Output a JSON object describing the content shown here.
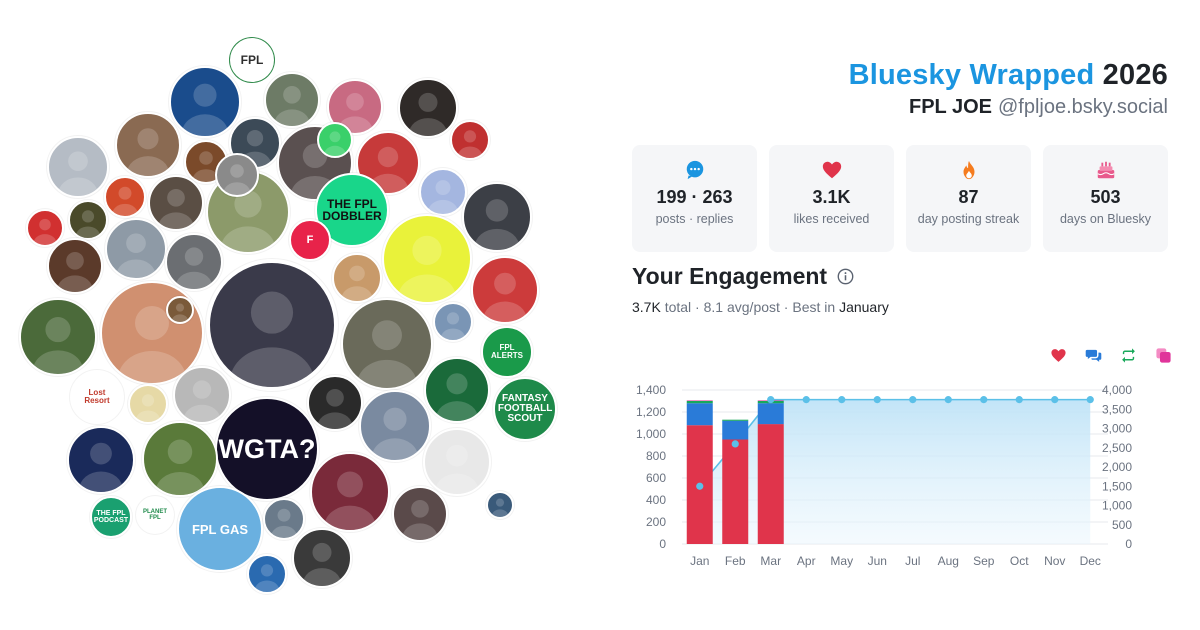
{
  "header": {
    "brand": "Bluesky Wrapped",
    "year": "2026",
    "name": "FPL JOE",
    "handle": "@fpljoe.bsky.social"
  },
  "stats": [
    {
      "value": "199 · 263",
      "label": "posts · replies",
      "icon": "chat-bubble-icon",
      "color": "#1b95e0"
    },
    {
      "value": "3.1K",
      "label": "likes received",
      "icon": "heart-icon",
      "color": "#e0344b"
    },
    {
      "value": "87",
      "label": "day posting streak",
      "icon": "flame-icon",
      "color": "#f57c1f"
    },
    {
      "value": "503",
      "label": "days on Bluesky",
      "icon": "cake-icon",
      "color": "#e85a8c"
    }
  ],
  "engagement": {
    "title": "Your Engagement",
    "total": "3.7K",
    "total_label": "total",
    "avg": "8.1 avg/post",
    "best_prefix": "Best in",
    "best_month": "January",
    "legend": [
      {
        "icon": "heart-icon",
        "color": "#e0344b"
      },
      {
        "icon": "replies-icon",
        "color": "#2a7bd8"
      },
      {
        "icon": "repost-icon",
        "color": "#18a85a"
      },
      {
        "icon": "quote-icon",
        "color": "#e0349a"
      }
    ]
  },
  "chart_data": {
    "type": "bar",
    "categories": [
      "Jan",
      "Feb",
      "Mar",
      "Apr",
      "May",
      "Jun",
      "Jul",
      "Aug",
      "Sep",
      "Oct",
      "Nov",
      "Dec"
    ],
    "ylim": [
      0,
      1400
    ],
    "y2lim": [
      0,
      4000
    ],
    "yticks": [
      "0",
      "200",
      "400",
      "600",
      "800",
      "1,000",
      "1,200",
      "1,400"
    ],
    "y2ticks": [
      "0",
      "500",
      "1,000",
      "1,500",
      "2,000",
      "2,500",
      "3,000",
      "3,500",
      "4,000"
    ],
    "series": [
      {
        "values": [
          1080,
          950,
          1090,
          0,
          0,
          0,
          0,
          0,
          0,
          0,
          0,
          0
        ],
        "color": "#e0344b"
      },
      {
        "values": [
          200,
          170,
          190,
          0,
          0,
          0,
          0,
          0,
          0,
          0,
          0,
          0
        ],
        "color": "#2a7bd8"
      },
      {
        "values": [
          20,
          10,
          20,
          0,
          0,
          0,
          0,
          0,
          0,
          0,
          0,
          0
        ],
        "color": "#18a85a"
      },
      {
        "values": [
          5,
          0,
          5,
          0,
          0,
          0,
          0,
          0,
          0,
          0,
          0,
          0
        ],
        "color": "#e0349a"
      }
    ],
    "cumulative": {
      "values": [
        1500,
        2600,
        3750,
        3750,
        3750,
        3750,
        3750,
        3750,
        3750,
        3750,
        3750,
        3750
      ],
      "color": "#5bc0e8"
    }
  },
  "avatars": [
    {
      "label": "FPL",
      "bg": "#ffffff",
      "fg": "#2f2f2f",
      "ring": "#2f8a4a"
    },
    {
      "label": "",
      "bg": "#1a4c8c",
      "fg": "#ffffff"
    },
    {
      "label": "",
      "bg": "#6d7b66",
      "fg": "#ffffff"
    },
    {
      "label": "",
      "bg": "#c86a82",
      "fg": "#ffffff"
    },
    {
      "label": "",
      "bg": "#2f2a28",
      "fg": "#ffffff"
    },
    {
      "label": "",
      "bg": "#8a6a52",
      "fg": "#ffffff"
    },
    {
      "label": "",
      "bg": "#3c4a57",
      "fg": "#ffffff"
    },
    {
      "label": "",
      "bg": "#5a5050",
      "fg": "#ffffff"
    },
    {
      "label": "",
      "bg": "#c63a3a",
      "fg": "#ffffff"
    },
    {
      "label": "",
      "bg": "#7b4a2a",
      "fg": "#ffffff"
    },
    {
      "label": "",
      "bg": "#b5bcc5",
      "fg": "#ffffff"
    },
    {
      "label": "",
      "bg": "#d24a2a",
      "fg": "#ffffff"
    },
    {
      "label": "",
      "bg": "#5a4e44",
      "fg": "#ffffff"
    },
    {
      "label": "",
      "bg": "#8c9a6a",
      "fg": "#ffffff"
    },
    {
      "label": "THE FPL DOBBLER",
      "bg": "#19d68a",
      "fg": "#111111"
    },
    {
      "label": "",
      "bg": "#a4b6e0",
      "fg": "#ffffff"
    },
    {
      "label": "",
      "bg": "#3c3f46",
      "fg": "#ffffff"
    },
    {
      "label": "",
      "bg": "#4a4a2a",
      "fg": "#ffffff"
    },
    {
      "label": "",
      "bg": "#d13030",
      "fg": "#ffffff"
    },
    {
      "label": "",
      "bg": "#8e9aa6",
      "fg": "#ffffff"
    },
    {
      "label": "",
      "bg": "#6b6e72",
      "fg": "#ffffff"
    },
    {
      "label": "F",
      "bg": "#e8234a",
      "fg": "#ffffff"
    },
    {
      "label": "",
      "bg": "#e9f23a",
      "fg": "#1f1f1f"
    },
    {
      "label": "",
      "bg": "#c89a6a",
      "fg": "#ffffff"
    },
    {
      "label": "",
      "bg": "#3a3a4a",
      "fg": "#ffffff"
    },
    {
      "label": "",
      "bg": "#5b3a2a",
      "fg": "#ffffff"
    },
    {
      "label": "",
      "bg": "#cc3b3b",
      "fg": "#ffffff"
    },
    {
      "label": "",
      "bg": "#d09070",
      "fg": "#ffffff"
    },
    {
      "label": "",
      "bg": "#6a6a5a",
      "fg": "#ffffff"
    },
    {
      "label": "",
      "bg": "#7a95b5",
      "fg": "#ffffff"
    },
    {
      "label": "",
      "bg": "#4b6a3a",
      "fg": "#ffffff"
    },
    {
      "label": "FPL ALERTS",
      "bg": "#1a9a4a",
      "fg": "#ffffff"
    },
    {
      "label": "Lost Resort",
      "bg": "#ffffff",
      "fg": "#c0392b"
    },
    {
      "label": "",
      "bg": "#e6d9a6",
      "fg": "#333333"
    },
    {
      "label": "",
      "bg": "#b8b8b8",
      "fg": "#333333"
    },
    {
      "label": "",
      "bg": "#1a6a3a",
      "fg": "#ffffff"
    },
    {
      "label": "FANTASY FOOTBALL SCOUT",
      "bg": "#1e8a4a",
      "fg": "#ffffff"
    },
    {
      "label": "",
      "bg": "#2a2a2a",
      "fg": "#ffffff"
    },
    {
      "label": "",
      "bg": "#7a8aa0",
      "fg": "#ffffff"
    },
    {
      "label": "WGTA?",
      "bg": "#141028",
      "fg": "#ffffff"
    },
    {
      "label": "",
      "bg": "#5a7a3a",
      "fg": "#ffffff"
    },
    {
      "label": "",
      "bg": "#e8e8e8",
      "fg": "#333333"
    },
    {
      "label": "",
      "bg": "#1a2a5a",
      "fg": "#ffffff"
    },
    {
      "label": "",
      "bg": "#7a2a3a",
      "fg": "#ffffff"
    },
    {
      "label": "",
      "bg": "#5a4a4a",
      "fg": "#ffffff"
    },
    {
      "label": "THE FPL PODCAST",
      "bg": "#1aa070",
      "fg": "#ffffff"
    },
    {
      "label": "PLANET FPL",
      "bg": "#ffffff",
      "fg": "#1e8a4a"
    },
    {
      "label": "FPL GAS",
      "bg": "#6ab0e0",
      "fg": "#ffffff"
    },
    {
      "label": "",
      "bg": "#6a7a8a",
      "fg": "#ffffff"
    },
    {
      "label": "",
      "bg": "#2a6ab0",
      "fg": "#ffffff"
    },
    {
      "label": "",
      "bg": "#3a3a3a",
      "fg": "#ffffff"
    },
    {
      "label": "",
      "bg": "#3ad06a",
      "fg": "#ffffff"
    },
    {
      "label": "",
      "bg": "#8a8a8a",
      "fg": "#ffffff"
    },
    {
      "label": "",
      "bg": "#c03030",
      "fg": "#ffffff"
    },
    {
      "label": "",
      "bg": "#7a5a3a",
      "fg": "#ffffff"
    },
    {
      "label": "",
      "bg": "#3a5a7a",
      "fg": "#ffffff"
    }
  ]
}
